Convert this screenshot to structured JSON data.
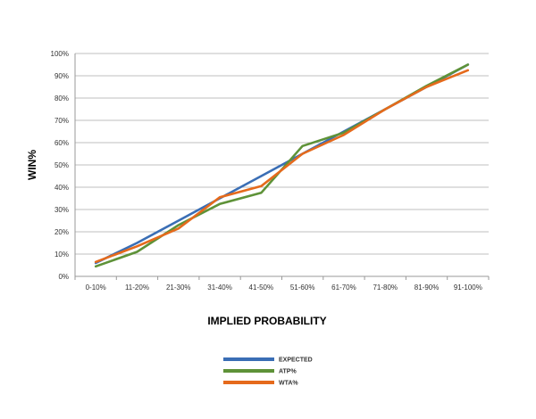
{
  "chart_data": {
    "type": "line",
    "xlabel": "IMPLIED PROBABILITY",
    "ylabel": "WIN%",
    "categories": [
      "0-10%",
      "11-20%",
      "21-30%",
      "31-40%",
      "41-50%",
      "51-60%",
      "61-70%",
      "71-80%",
      "81-90%",
      "91-100%"
    ],
    "yticks": [
      "0%",
      "10%",
      "20%",
      "30%",
      "40%",
      "50%",
      "60%",
      "70%",
      "80%",
      "90%",
      "100%"
    ],
    "ylim": [
      0,
      100
    ],
    "grid": true,
    "legend_position": "bottom",
    "series": [
      {
        "name": "EXPECTED",
        "color": "#3a6eb5",
        "values": [
          6,
          15,
          25,
          35,
          45,
          55,
          65,
          75,
          85,
          95
        ]
      },
      {
        "name": "ATP%",
        "color": "#5e9238",
        "values": [
          4.5,
          11,
          23,
          32.5,
          37.5,
          58.5,
          64.5,
          75,
          85.5,
          95
        ]
      },
      {
        "name": "WTA%",
        "color": "#e56a1c",
        "values": [
          6.5,
          13.5,
          21.5,
          35.5,
          40.5,
          55,
          63.5,
          75,
          85,
          92.5
        ]
      }
    ]
  }
}
